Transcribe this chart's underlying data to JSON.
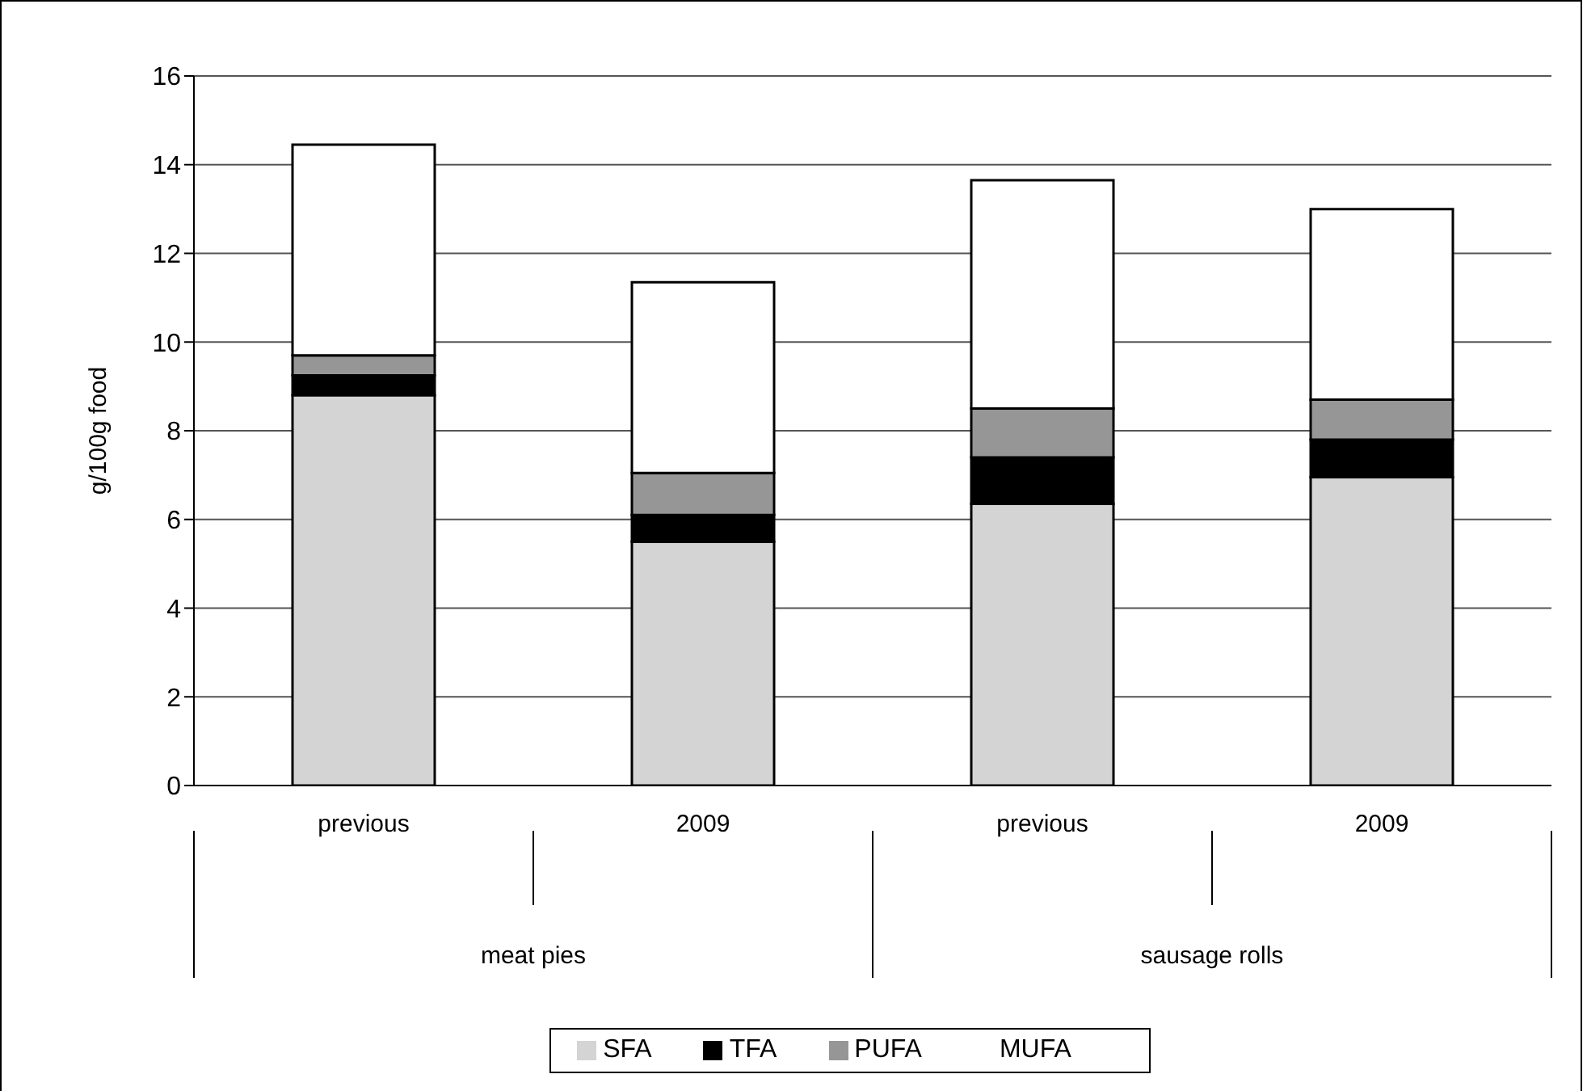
{
  "chart_data": {
    "type": "bar",
    "stacked": true,
    "categories": [
      "previous",
      "2009",
      "previous",
      "2009"
    ],
    "series": [
      {
        "name": "SFA",
        "color": "#d4d4d4",
        "values": [
          8.8,
          5.5,
          6.35,
          6.95
        ]
      },
      {
        "name": "TFA",
        "color": "#000000",
        "values": [
          0.45,
          0.6,
          1.05,
          0.85
        ]
      },
      {
        "name": "PUFA",
        "color": "#969696",
        "values": [
          0.45,
          0.95,
          1.1,
          0.9
        ]
      },
      {
        "name": "MUFA",
        "color": "#ffffff",
        "values": [
          4.75,
          4.3,
          5.15,
          4.3
        ]
      }
    ],
    "ylabel": "g/100g food",
    "ylim": [
      0,
      16
    ],
    "yticks": [
      0,
      2,
      4,
      6,
      8,
      10,
      12,
      14,
      16
    ],
    "grid": "y",
    "legend": "bottom",
    "annotations": [
      "meat pies",
      "sausage rolls"
    ]
  }
}
